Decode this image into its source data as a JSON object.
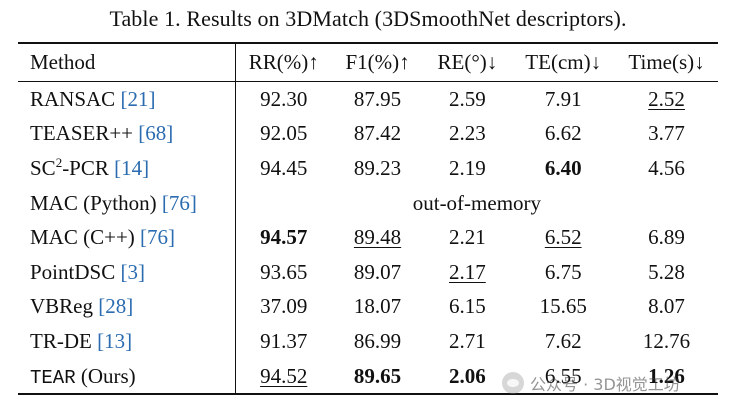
{
  "caption": "Table 1. Results on 3DMatch (3DSmoothNet descriptors).",
  "columns": [
    "Method",
    "RR(%)↑",
    "F1(%)↑",
    "RE(°)↓",
    "TE(cm)↓",
    "Time(s)↓"
  ],
  "rows": [
    {
      "name": "RANSAC",
      "ref": "[21]",
      "cells": [
        "92.30",
        "87.95",
        "2.59",
        "7.91",
        "2.52"
      ]
    },
    {
      "name": "TEASER++",
      "ref": "[68]",
      "cells": [
        "92.05",
        "87.42",
        "2.23",
        "6.62",
        "3.77"
      ]
    },
    {
      "name_pre": "SC",
      "name_sup": "2",
      "name_post": "-PCR",
      "ref": "[14]",
      "cells": [
        "94.45",
        "89.23",
        "2.19",
        "6.40",
        "4.56"
      ]
    },
    {
      "name": "MAC (Python)",
      "ref": "[76]",
      "span_text": "out-of-memory"
    },
    {
      "name": "MAC (C++)",
      "ref": "[76]",
      "cells": [
        "94.57",
        "89.48",
        "2.21",
        "6.52",
        "6.89"
      ]
    },
    {
      "name": "PointDSC",
      "ref": "[3]",
      "cells": [
        "93.65",
        "89.07",
        "2.17",
        "6.75",
        "5.28"
      ]
    },
    {
      "name": "VBReg",
      "ref": "[28]",
      "cells": [
        "37.09",
        "18.07",
        "6.15",
        "15.65",
        "8.07"
      ]
    },
    {
      "name": "TR-DE",
      "ref": "[13]",
      "cells": [
        "91.37",
        "86.99",
        "2.71",
        "7.62",
        "12.76"
      ]
    },
    {
      "name_mono": "TEAR",
      "name_suffix": "(Ours)",
      "cells": [
        "94.52",
        "89.65",
        "2.06",
        "6.55",
        "1.26"
      ]
    }
  ],
  "watermark": "公众号 · 3D视觉工坊"
}
